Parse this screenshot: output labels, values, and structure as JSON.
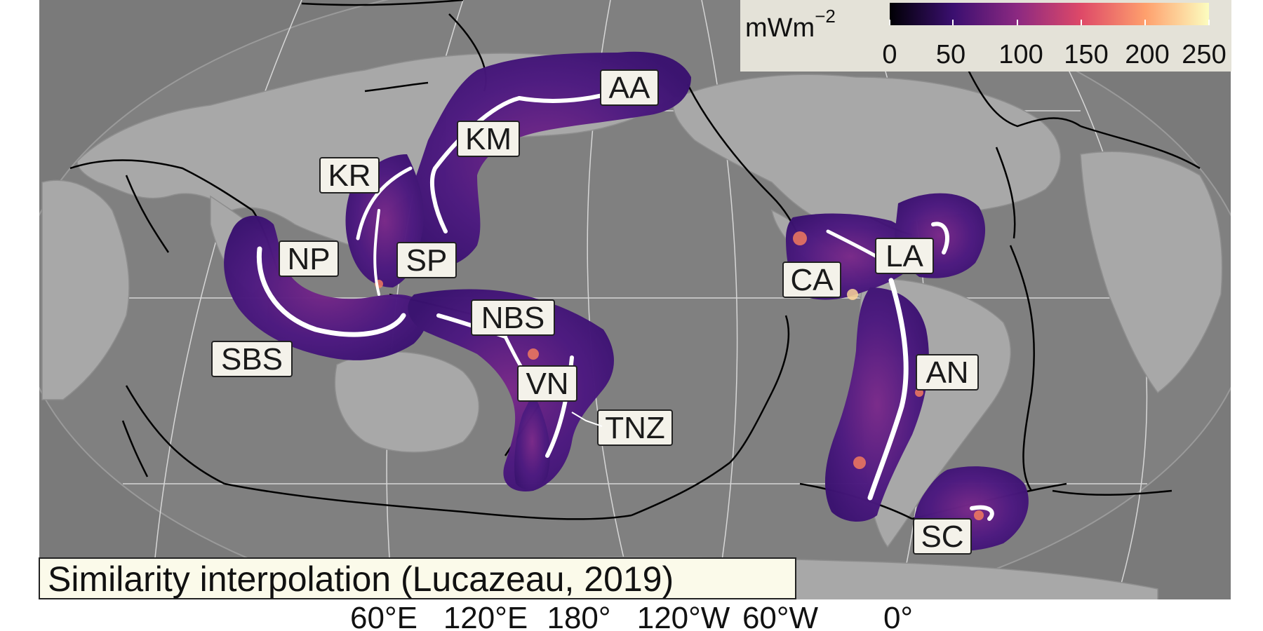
{
  "title": "Similarity interpolation (Lucazeau, 2019)",
  "colorbar": {
    "unit_base": "mWm",
    "unit_exp": "−2",
    "ticks": [
      "0",
      "50",
      "100",
      "150",
      "200",
      "250"
    ],
    "colors": [
      "#000004",
      "#3b0f70",
      "#8c2981",
      "#de4968",
      "#fe9f6d",
      "#fcfdbf"
    ]
  },
  "longitude_labels": [
    "60°E",
    "120°E",
    "180°",
    "120°W",
    "60°W",
    "0°"
  ],
  "subduction_zones": [
    {
      "id": "AA",
      "label": "AA"
    },
    {
      "id": "KM",
      "label": "KM"
    },
    {
      "id": "KR",
      "label": "KR"
    },
    {
      "id": "NP",
      "label": "NP"
    },
    {
      "id": "SP",
      "label": "SP"
    },
    {
      "id": "NBS",
      "label": "NBS"
    },
    {
      "id": "SBS",
      "label": "SBS"
    },
    {
      "id": "VN",
      "label": "VN"
    },
    {
      "id": "TNZ",
      "label": "TNZ"
    },
    {
      "id": "CA",
      "label": "CA"
    },
    {
      "id": "LA",
      "label": "LA"
    },
    {
      "id": "AN",
      "label": "AN"
    },
    {
      "id": "SC",
      "label": "SC"
    }
  ],
  "colors": {
    "ocean": "#7a7a7a",
    "land": "#a8a8a8",
    "heatflow_base": "#4a1679",
    "trench": "#ffffff",
    "plate_boundary": "#000000",
    "graticule": "#e6e6e6"
  }
}
